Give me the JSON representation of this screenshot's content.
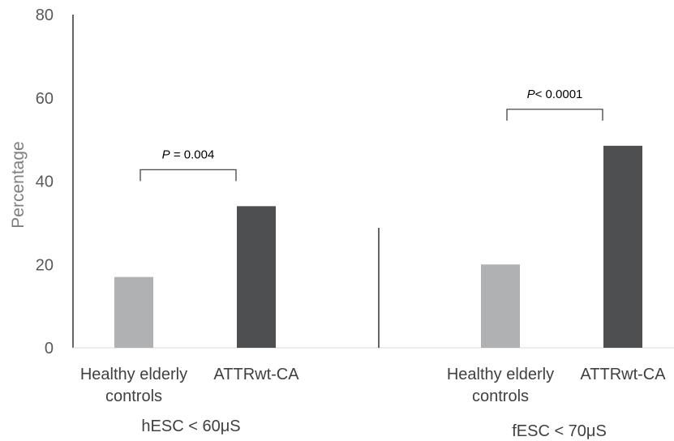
{
  "chart_data": {
    "type": "bar",
    "title": "",
    "xlabel": "",
    "ylabel": "Percentage",
    "ylim": [
      0,
      80
    ],
    "yticks": [
      0,
      20,
      40,
      60,
      80
    ],
    "grid": false,
    "legend": "none",
    "categories": [
      "Healthy elderly controls",
      "ATTRwt-CA"
    ],
    "groups": [
      {
        "label": "hESC < 60μS",
        "values": [
          17,
          34
        ],
        "p_value": {
          "prefix": "P",
          "text": " = 0.004"
        }
      },
      {
        "label": "fESC < 70μS",
        "values": [
          20,
          48.5
        ],
        "p_value": {
          "prefix": "P",
          "text": "< 0.0001"
        }
      }
    ],
    "colors": {
      "Healthy elderly controls": "#b0b1b3",
      "ATTRwt-CA": "#4e4f51",
      "axis": "#000000",
      "tick_text": "#595959",
      "label_text": "#404040"
    }
  }
}
